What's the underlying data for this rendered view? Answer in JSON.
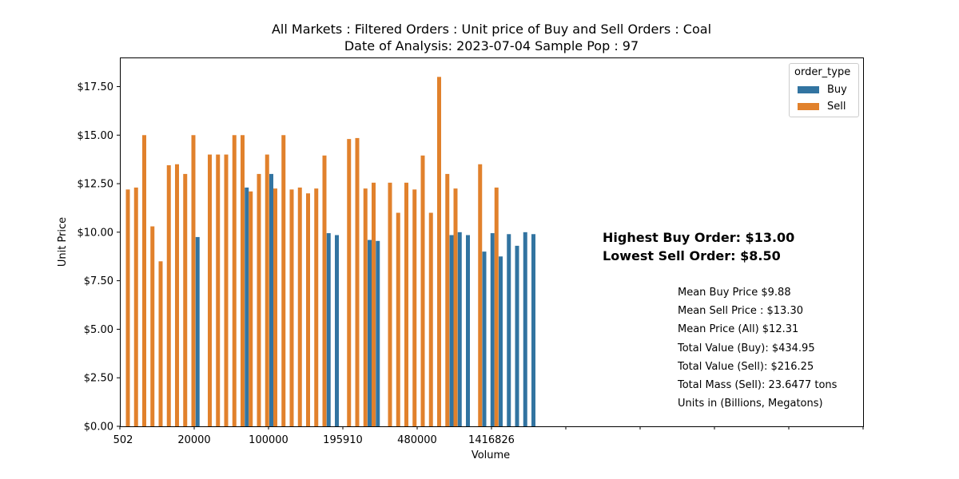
{
  "chart_data": {
    "type": "bar",
    "title": "All Markets : Filtered Orders : Unit price of Buy and Sell Orders : Coal",
    "subtitle": "Date of Analysis: 2023-07-04 Sample Pop : 97",
    "xlabel": "Volume",
    "ylabel": "Unit Price",
    "ylim": [
      0,
      19
    ],
    "yticks": [
      "$0.00",
      "$2.50",
      "$5.00",
      "$7.50",
      "$10.00",
      "$12.50",
      "$15.00",
      "$17.50"
    ],
    "xtick_labels": [
      "502",
      "20000",
      "100000",
      "195910",
      "480000",
      "1416826",
      "",
      "",
      "",
      "",
      ""
    ],
    "legend": {
      "title": "order_type",
      "position": "top-right"
    },
    "series": [
      {
        "name": "Buy",
        "color": "#3274a1",
        "values": [
          null,
          null,
          null,
          null,
          null,
          null,
          null,
          null,
          null,
          9.75,
          null,
          null,
          null,
          null,
          null,
          12.3,
          null,
          null,
          13.0,
          null,
          null,
          null,
          null,
          null,
          null,
          9.95,
          9.85,
          null,
          null,
          null,
          9.6,
          9.55,
          null,
          null,
          null,
          null,
          null,
          null,
          null,
          null,
          9.85,
          10.0,
          9.85,
          null,
          9.0,
          9.95,
          8.75,
          9.9,
          9.3,
          10.0,
          9.9
        ]
      },
      {
        "name": "Sell",
        "color": "#e1812c",
        "values": [
          12.2,
          12.3,
          15.0,
          10.3,
          8.5,
          13.45,
          13.5,
          13.0,
          15.0,
          null,
          14.0,
          14.0,
          14.0,
          15.0,
          15.0,
          12.1,
          13.0,
          14.0,
          12.25,
          15.0,
          12.2,
          12.3,
          12.0,
          12.25,
          13.95,
          null,
          null,
          14.8,
          14.85,
          12.25,
          12.55,
          null,
          12.55,
          11.0,
          12.55,
          12.2,
          13.95,
          11.0,
          18.0,
          13.0,
          12.25,
          null,
          null,
          13.5,
          null,
          12.3,
          null,
          null,
          null,
          null,
          null
        ]
      }
    ],
    "annotations": {
      "highlights": [
        "Highest Buy Order: $13.00",
        "Lowest Sell Order: $8.50"
      ],
      "stats": [
        "Mean Buy Price $9.88",
        "Mean Sell Price : $13.30",
        "Mean Price (All) $12.31",
        "Total Value (Buy): $434.95",
        "Total Value (Sell): $216.25",
        "Total Mass (Sell): 23.6477 tons",
        "Units in (Billions, Megatons)"
      ]
    }
  }
}
